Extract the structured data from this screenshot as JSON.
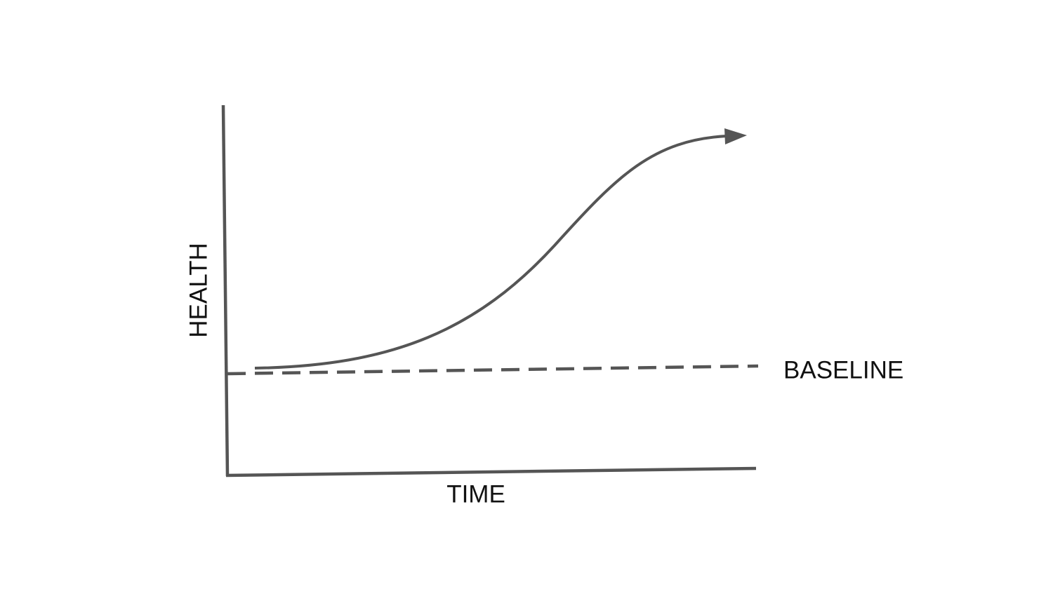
{
  "axes": {
    "y_label": "HEALTH",
    "x_label": "TIME"
  },
  "baseline": {
    "label": "BASELINE"
  }
}
